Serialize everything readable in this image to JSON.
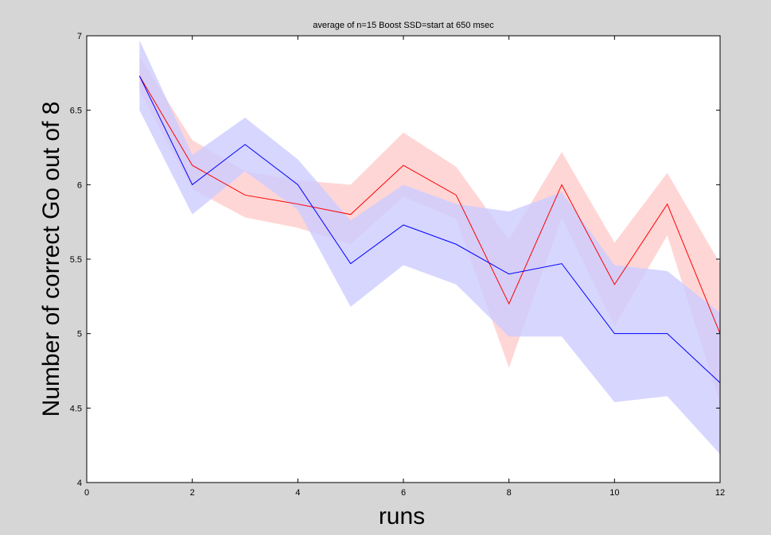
{
  "chart_data": {
    "type": "line",
    "title": "average of n=15 Boost SSD=start at 650 msec",
    "xlabel": "runs",
    "ylabel": "Number of correct Go out of 8",
    "xlim": [
      0,
      12
    ],
    "ylim": [
      4,
      7
    ],
    "xticks": [
      0,
      2,
      4,
      6,
      8,
      10,
      12
    ],
    "yticks": [
      4,
      4.5,
      5,
      5.5,
      6,
      6.5,
      7
    ],
    "grid": false,
    "x": [
      1,
      2,
      3,
      4,
      5,
      6,
      7,
      8,
      9,
      10,
      11,
      12
    ],
    "series": [
      {
        "color": "#ff0000",
        "band_color": "#ffcccc",
        "values": [
          6.73,
          6.13,
          5.93,
          5.87,
          5.8,
          6.13,
          5.93,
          5.2,
          6.0,
          5.33,
          5.87,
          5.0
        ],
        "upper": [
          6.86,
          6.3,
          6.09,
          6.03,
          6.0,
          6.35,
          6.12,
          5.63,
          6.22,
          5.61,
          6.08,
          5.47
        ],
        "lower": [
          6.63,
          5.97,
          5.78,
          5.71,
          5.6,
          5.92,
          5.77,
          4.77,
          5.78,
          5.05,
          5.66,
          4.53
        ]
      },
      {
        "color": "#0000ff",
        "band_color": "#ccccff",
        "values": [
          6.73,
          6.0,
          6.27,
          6.0,
          5.47,
          5.73,
          5.6,
          5.4,
          5.47,
          5.0,
          5.0,
          4.67
        ],
        "upper": [
          6.97,
          6.2,
          6.45,
          6.17,
          5.76,
          6.0,
          5.87,
          5.82,
          5.95,
          5.46,
          5.42,
          5.14
        ],
        "lower": [
          6.5,
          5.8,
          6.09,
          5.83,
          5.18,
          5.46,
          5.33,
          4.98,
          4.98,
          4.54,
          4.58,
          4.19
        ]
      }
    ]
  }
}
